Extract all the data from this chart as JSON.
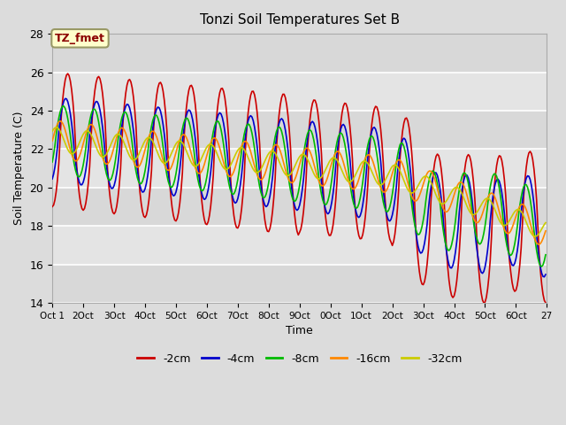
{
  "title": "Tonzi Soil Temperatures Set B",
  "xlabel": "Time",
  "ylabel": "Soil Temperature (C)",
  "ylim": [
    14,
    28
  ],
  "background_color": "#dcdcdc",
  "plot_bg_color": "#dcdcdc",
  "grid_color": "white",
  "annotation_text": "TZ_fmet",
  "annotation_color": "#8b0000",
  "annotation_bg": "#ffffcc",
  "annotation_border": "#999966",
  "series": {
    "labels": [
      "-2cm",
      "-4cm",
      "-8cm",
      "-16cm",
      "-32cm"
    ],
    "colors": [
      "#cc0000",
      "#0000cc",
      "#00bb00",
      "#ff8800",
      "#cccc00"
    ],
    "linewidths": [
      1.2,
      1.2,
      1.2,
      1.2,
      1.2
    ]
  },
  "xtick_labels": [
    "Oct 1",
    "2Oct",
    "3Oct",
    "4Oct",
    "5Oct",
    "6Oct",
    "7Oct",
    "8Oct",
    "9Oct",
    "0Oct",
    "1Oct",
    "2Oct",
    "3Oct",
    "4Oct",
    "5Oct",
    "6Oct",
    "27"
  ],
  "ytick_labels": [
    "14",
    "16",
    "18",
    "20",
    "22",
    "24",
    "26",
    "28"
  ],
  "ytick_positions": [
    14,
    16,
    18,
    20,
    22,
    24,
    26,
    28
  ],
  "n_points": 384,
  "n_days": 16
}
